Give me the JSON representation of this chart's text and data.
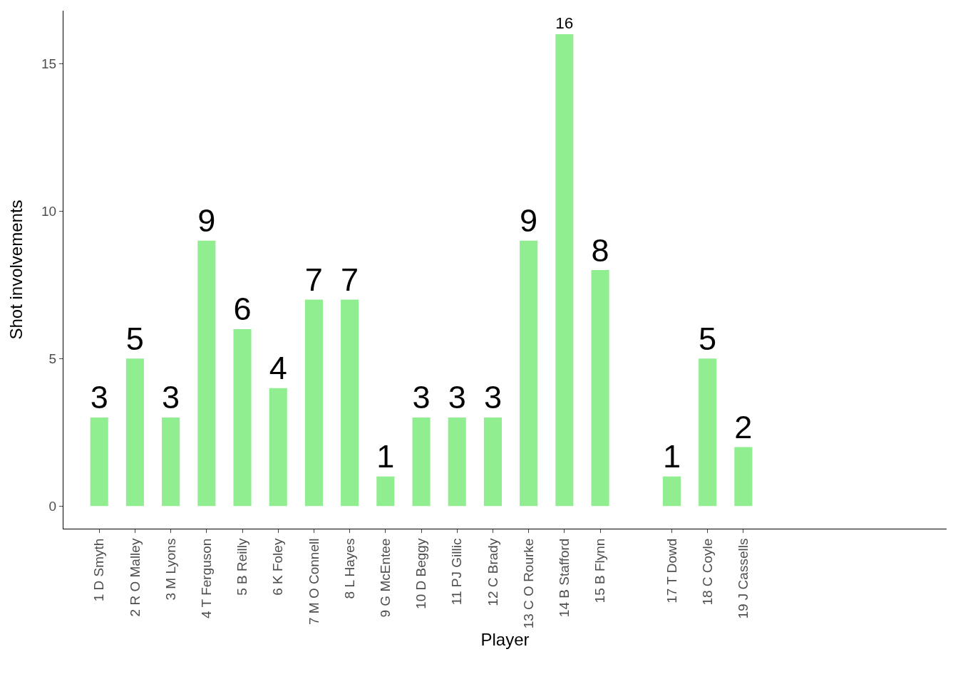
{
  "chart_data": {
    "type": "bar",
    "xlabel": "Player",
    "ylabel": "Shot involvements",
    "categories": [
      "1 D Smyth",
      "2 R O Malley",
      "3 M Lyons",
      "4 T Ferguson",
      "5 B Reilly",
      "6 K Foley",
      "7 M O Connell",
      "8 L Hayes",
      "9 G McEntee",
      "10 D Beggy",
      "11 PJ Gillic",
      "12 C Brady",
      "13 C O Rourke",
      "14 B Stafford",
      "15 B Flynn",
      null,
      "17 T Dowd",
      "18 C Coyle",
      "19 J Cassells",
      null,
      null,
      null,
      null,
      null
    ],
    "values": [
      3,
      5,
      3,
      9,
      6,
      4,
      7,
      7,
      1,
      3,
      3,
      3,
      9,
      16,
      8,
      null,
      1,
      5,
      2,
      null,
      null,
      null,
      null,
      null
    ],
    "color": "#90ee90",
    "ylim": [
      -0.77,
      16.8
    ],
    "yticks": [
      0,
      5,
      10,
      15
    ],
    "grid": false,
    "legend": false,
    "data_labels": true
  }
}
